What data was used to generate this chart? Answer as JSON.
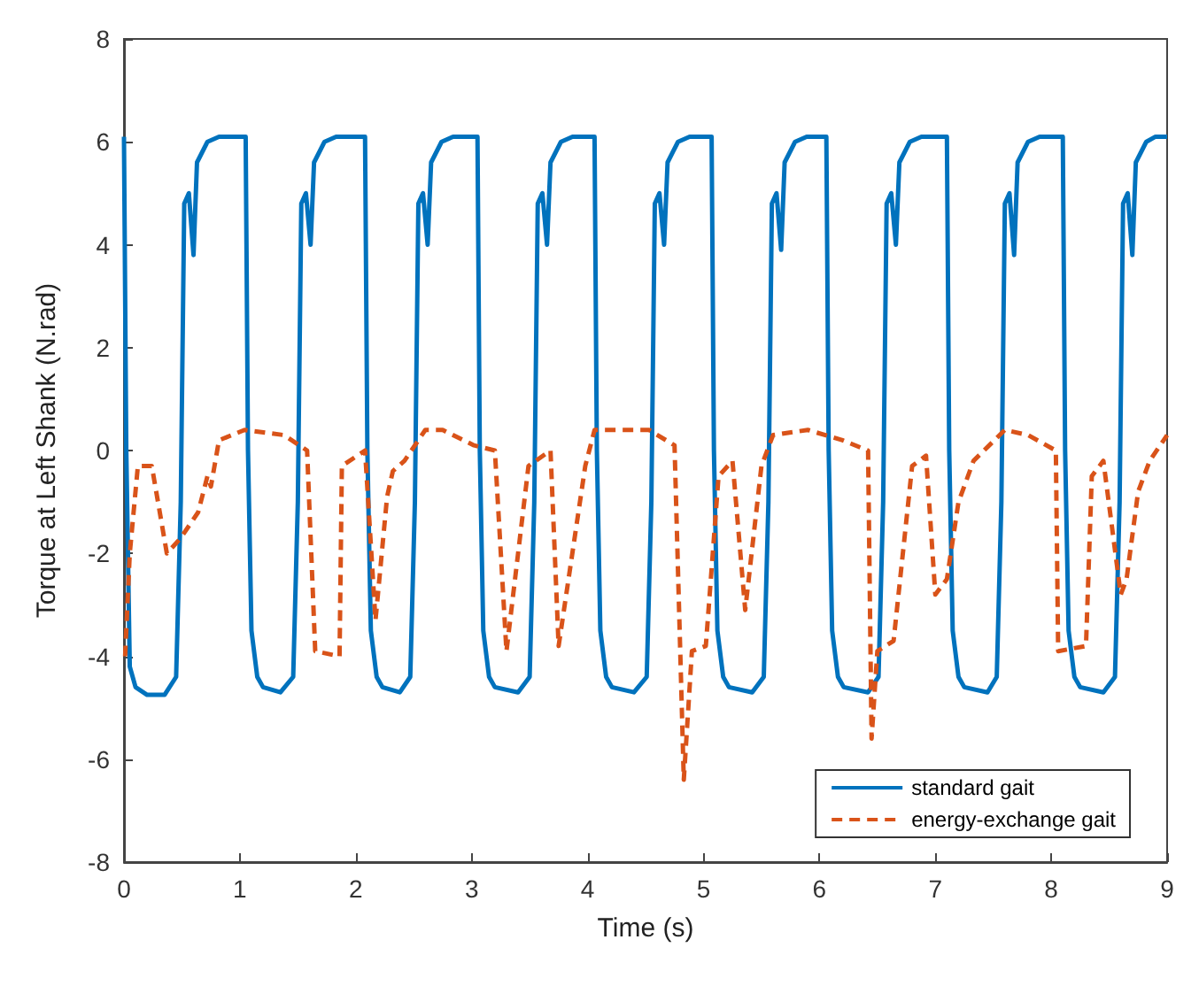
{
  "chart_data": {
    "type": "line",
    "xlabel": "Time (s)",
    "ylabel": "Torque at Left Shank (N.rad)",
    "xlim": [
      0,
      9
    ],
    "xticks": [
      0,
      1,
      2,
      3,
      4,
      5,
      6,
      7,
      8,
      9
    ],
    "ylim": [
      -8,
      8
    ],
    "yticks": [
      -8,
      -6,
      -4,
      -2,
      0,
      2,
      4,
      6,
      8
    ],
    "grid": false,
    "legend": "bottom right",
    "marker": "none",
    "series": [
      {
        "name": "standard gait",
        "color": "#0072bd",
        "line_style": "solid",
        "x": [
          0,
          0.02,
          0.05,
          0.1,
          0.2,
          0.35,
          0.45,
          0.49,
          0.52,
          0.56,
          0.6,
          0.63,
          0.72,
          0.82,
          1.05,
          1.07,
          1.1,
          1.15,
          1.2,
          1.35,
          1.46,
          1.5,
          1.53,
          1.57,
          1.61,
          1.64,
          1.73,
          1.83,
          2.08,
          2.1,
          2.13,
          2.18,
          2.23,
          2.38,
          2.47,
          2.51,
          2.54,
          2.58,
          2.62,
          2.65,
          2.74,
          2.84,
          3.05,
          3.07,
          3.1,
          3.15,
          3.2,
          3.4,
          3.5,
          3.54,
          3.57,
          3.61,
          3.65,
          3.68,
          3.77,
          3.87,
          4.06,
          4.08,
          4.11,
          4.16,
          4.21,
          4.4,
          4.51,
          4.55,
          4.58,
          4.62,
          4.66,
          4.69,
          4.78,
          4.88,
          5.07,
          5.09,
          5.12,
          5.17,
          5.22,
          5.42,
          5.52,
          5.56,
          5.59,
          5.63,
          5.67,
          5.7,
          5.79,
          5.89,
          6.06,
          6.08,
          6.11,
          6.16,
          6.21,
          6.42,
          6.51,
          6.55,
          6.58,
          6.62,
          6.66,
          6.69,
          6.78,
          6.88,
          7.1,
          7.12,
          7.15,
          7.2,
          7.25,
          7.45,
          7.53,
          7.57,
          7.6,
          7.64,
          7.68,
          7.71,
          7.8,
          7.9,
          8.1,
          8.12,
          8.15,
          8.2,
          8.25,
          8.45,
          8.55,
          8.59,
          8.62,
          8.66,
          8.7,
          8.73,
          8.82,
          8.9,
          9
        ],
        "values": [
          6.1,
          0,
          -4.2,
          -4.6,
          -4.75,
          -4.75,
          -4.4,
          -1,
          4.8,
          5.0,
          3.8,
          5.6,
          6.0,
          6.1,
          6.1,
          0,
          -3.5,
          -4.4,
          -4.6,
          -4.7,
          -4.4,
          -1,
          4.8,
          5.0,
          4.0,
          5.6,
          6.0,
          6.1,
          6.1,
          0,
          -3.5,
          -4.4,
          -4.6,
          -4.7,
          -4.4,
          -1,
          4.8,
          5.0,
          4.0,
          5.6,
          6.0,
          6.1,
          6.1,
          0,
          -3.5,
          -4.4,
          -4.6,
          -4.7,
          -4.4,
          -1,
          4.8,
          5.0,
          4.0,
          5.6,
          6.0,
          6.1,
          6.1,
          0,
          -3.5,
          -4.4,
          -4.6,
          -4.7,
          -4.4,
          -1,
          4.8,
          5.0,
          4.0,
          5.6,
          6.0,
          6.1,
          6.1,
          0,
          -3.5,
          -4.4,
          -4.6,
          -4.7,
          -4.4,
          -1,
          4.8,
          5.0,
          3.9,
          5.6,
          6.0,
          6.1,
          6.1,
          0,
          -3.5,
          -4.4,
          -4.6,
          -4.7,
          -4.4,
          -1,
          4.8,
          5.0,
          4.0,
          5.6,
          6.0,
          6.1,
          6.1,
          0,
          -3.5,
          -4.4,
          -4.6,
          -4.7,
          -4.4,
          -1,
          4.8,
          5.0,
          3.8,
          5.6,
          6.0,
          6.1,
          6.1,
          0,
          -3.5,
          -4.4,
          -4.6,
          -4.7,
          -4.4,
          -1,
          4.8,
          5.0,
          3.8,
          5.6,
          6.0,
          6.1,
          6.1
        ]
      },
      {
        "name": "energy-exchange gait",
        "color": "#d95319",
        "line_style": "dashed",
        "x": [
          0.01,
          0.05,
          0.12,
          0.24,
          0.37,
          0.49,
          0.64,
          0.72,
          0.75,
          0.82,
          1.04,
          1.38,
          1.58,
          1.65,
          1.86,
          1.88,
          2.08,
          2.17,
          2.27,
          2.32,
          2.42,
          2.6,
          2.75,
          3.02,
          3.2,
          3.3,
          3.49,
          3.68,
          3.75,
          3.98,
          4.06,
          4.53,
          4.75,
          4.83,
          4.9,
          5.02,
          5.13,
          5.25,
          5.36,
          5.5,
          5.6,
          5.9,
          6.2,
          6.42,
          6.45,
          6.5,
          6.64,
          6.8,
          6.92,
          7.0,
          7.1,
          7.2,
          7.33,
          7.6,
          7.8,
          8.04,
          8.06,
          8.3,
          8.35,
          8.45,
          8.6,
          8.65,
          8.75,
          8.85,
          9
        ],
        "values": [
          -4.0,
          -2,
          -0.3,
          -0.3,
          -2.0,
          -1.7,
          -1.2,
          -0.5,
          -0.7,
          0.2,
          0.4,
          0.3,
          0,
          -3.9,
          -4.0,
          -0.3,
          0,
          -3.3,
          -0.9,
          -0.4,
          -0.2,
          0.4,
          0.4,
          0.1,
          0,
          -3.9,
          -0.3,
          0,
          -3.8,
          -0.3,
          0.4,
          0.4,
          0.1,
          -6.4,
          -3.9,
          -3.8,
          -0.5,
          -0.2,
          -3.1,
          -0.3,
          0.3,
          0.4,
          0.2,
          0,
          -5.6,
          -3.9,
          -3.7,
          -0.3,
          -0.1,
          -2.8,
          -2.5,
          -1,
          -0.2,
          0.4,
          0.3,
          0,
          -3.9,
          -3.8,
          -0.5,
          -0.2,
          -2.8,
          -2.5,
          -0.8,
          -0.2,
          0.3
        ]
      }
    ]
  }
}
